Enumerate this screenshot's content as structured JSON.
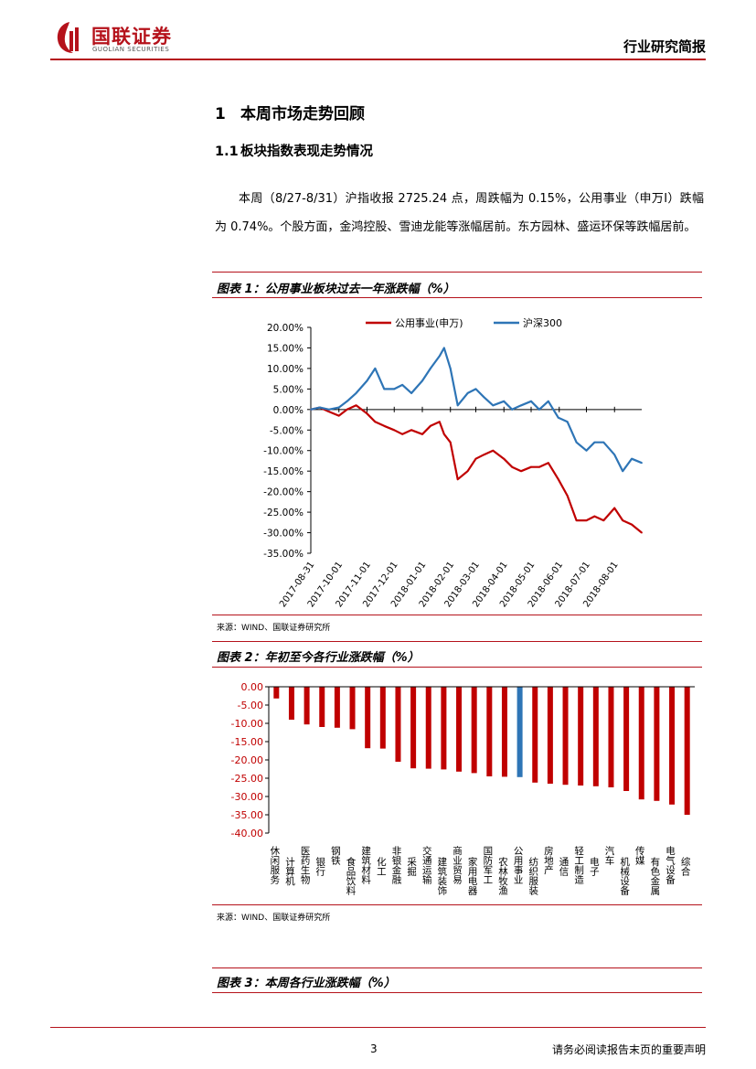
{
  "header": {
    "logo_cn": "国联证券",
    "logo_en": "GUOLIAN SECURITIES",
    "report_type": "行业研究简报"
  },
  "section": {
    "h1_num": "1",
    "h1_title": "本周市场走势回顾",
    "h2_num": "1.1",
    "h2_title": "板块指数表现走势情况",
    "paragraph": "本周（8/27-8/31）沪指收报 2725.24 点，周跌幅为 0.15%，公用事业（申万Ⅰ）跌幅为 0.74%。个股方面，金鸿控股、雪迪龙能等涨幅居前。东方园林、盛运环保等跌幅居前。"
  },
  "figure1": {
    "title": "图表 1：公用事业板块过去一年涨跌幅（%）",
    "source": "来源：WIND、国联证券研究所"
  },
  "figure2": {
    "title": "图表 2：年初至今各行业涨跌幅（%）",
    "source": "来源：WIND、国联证券研究所"
  },
  "figure3": {
    "title": "图表 3：本周各行业涨跌幅（%）"
  },
  "footer": {
    "page": "3",
    "disclaimer": "请务必阅读报告末页的重要声明"
  },
  "colors": {
    "brand_red": "#b5121b",
    "series_red": "#c00000",
    "series_blue": "#2e75b6"
  },
  "chart_data": [
    {
      "type": "line",
      "title": "",
      "ylim": [
        -35,
        20
      ],
      "yticks": [
        "20.00%",
        "15.00%",
        "10.00%",
        "5.00%",
        "0.00%",
        "-5.00%",
        "-10.00%",
        "-15.00%",
        "-20.00%",
        "-25.00%",
        "-30.00%",
        "-35.00%"
      ],
      "x_labels": [
        "2017-08-31",
        "2017-10-01",
        "2017-11-01",
        "2017-12-01",
        "2018-01-01",
        "2018-02-01",
        "2018-03-01",
        "2018-04-01",
        "2018-05-01",
        "2018-06-01",
        "2018-07-01",
        "2018-08-01"
      ],
      "x_range": [
        "2017-08-31",
        "2018-08-31"
      ],
      "legend_position": "top",
      "grid": false,
      "series": [
        {
          "name": "公用事业(申万)",
          "color": "#c00000",
          "x": [
            "2017-08-31",
            "2017-09-10",
            "2017-09-20",
            "2017-10-01",
            "2017-10-10",
            "2017-10-20",
            "2017-11-01",
            "2017-11-10",
            "2017-11-20",
            "2017-12-01",
            "2017-12-10",
            "2017-12-20",
            "2018-01-01",
            "2018-01-10",
            "2018-01-20",
            "2018-01-25",
            "2018-02-01",
            "2018-02-09",
            "2018-02-20",
            "2018-03-01",
            "2018-03-10",
            "2018-03-20",
            "2018-04-01",
            "2018-04-10",
            "2018-04-20",
            "2018-05-01",
            "2018-05-10",
            "2018-05-20",
            "2018-05-31",
            "2018-06-10",
            "2018-06-20",
            "2018-07-01",
            "2018-07-10",
            "2018-07-20",
            "2018-08-01",
            "2018-08-10",
            "2018-08-20",
            "2018-08-31"
          ],
          "values": [
            0,
            0.5,
            -0.5,
            -1.5,
            0,
            1,
            -1,
            -3,
            -4,
            -5,
            -6,
            -5,
            -6,
            -4,
            -3,
            -6,
            -8,
            -17,
            -15,
            -12,
            -11,
            -10,
            -12,
            -14,
            -15,
            -14,
            -14,
            -13,
            -17,
            -21,
            -27,
            -27,
            -26,
            -27,
            -24,
            -27,
            -28,
            -30
          ]
        },
        {
          "name": "沪深300",
          "color": "#2e75b6",
          "x": [
            "2017-08-31",
            "2017-09-10",
            "2017-09-20",
            "2017-10-01",
            "2017-10-10",
            "2017-10-20",
            "2017-11-01",
            "2017-11-10",
            "2017-11-20",
            "2017-12-01",
            "2017-12-10",
            "2017-12-20",
            "2018-01-01",
            "2018-01-10",
            "2018-01-20",
            "2018-01-25",
            "2018-02-01",
            "2018-02-09",
            "2018-02-20",
            "2018-03-01",
            "2018-03-10",
            "2018-03-20",
            "2018-04-01",
            "2018-04-10",
            "2018-04-20",
            "2018-05-01",
            "2018-05-10",
            "2018-05-20",
            "2018-05-31",
            "2018-06-10",
            "2018-06-20",
            "2018-07-01",
            "2018-07-10",
            "2018-07-20",
            "2018-08-01",
            "2018-08-10",
            "2018-08-20",
            "2018-08-31"
          ],
          "values": [
            0,
            0.5,
            0,
            0.5,
            2,
            4,
            7,
            10,
            5,
            5,
            6,
            4,
            7,
            10,
            13,
            15,
            10,
            1,
            4,
            5,
            3,
            1,
            2,
            0,
            1,
            2,
            0,
            2,
            -2,
            -3,
            -8,
            -10,
            -8,
            -8,
            -11,
            -15,
            -12,
            -13
          ]
        }
      ]
    },
    {
      "type": "bar",
      "title": "",
      "ylim": [
        -40,
        0
      ],
      "yticks": [
        "0.00",
        "-5.00",
        "-10.00",
        "-15.00",
        "-20.00",
        "-25.00",
        "-30.00",
        "-35.00",
        "-40.00"
      ],
      "highlight_category": "公用事业",
      "colors": {
        "default": "#c00000",
        "highlight": "#2e75b6"
      },
      "categories": [
        "休闲服务",
        "计算机",
        "医药生物",
        "银行",
        "钢铁",
        "食品饮料",
        "建筑材料",
        "化工",
        "非银金融",
        "采掘",
        "交通运输",
        "建筑装饰",
        "商业贸易",
        "家用电器",
        "国防军工",
        "农林牧渔",
        "公用事业",
        "纺织服装",
        "房地产",
        "通信",
        "轻工制造",
        "电子",
        "汽车",
        "机械设备",
        "传媒",
        "有色金属",
        "电气设备",
        "综合"
      ],
      "values": [
        -3.2,
        -9,
        -10.3,
        -11,
        -11.2,
        -11.6,
        -16.8,
        -16.9,
        -20.5,
        -22.3,
        -22.4,
        -22.6,
        -23.2,
        -23.6,
        -24.5,
        -24.6,
        -24.7,
        -26.2,
        -26.5,
        -26.8,
        -27,
        -27.2,
        -27.5,
        -28.5,
        -30.8,
        -31.2,
        -32.2,
        -35
      ]
    }
  ]
}
